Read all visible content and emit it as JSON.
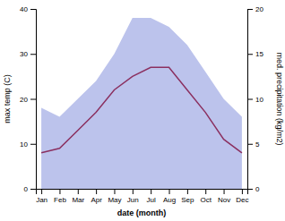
{
  "chart_data": {
    "type": "line",
    "xlabel": "date (month)",
    "ylabel": "max temp (C)",
    "y2label": "med. precipitation (kg/m2)",
    "categories": [
      "Jan",
      "Feb",
      "Mar",
      "Apr",
      "May",
      "Jun",
      "Jul",
      "Aug",
      "Sep",
      "Oct",
      "Nov",
      "Dec"
    ],
    "series": [
      {
        "type": "area",
        "axis": "y2",
        "color": "#bcc3ec",
        "values": [
          9,
          8,
          10,
          12,
          15,
          19,
          19,
          18,
          16,
          13,
          10,
          8
        ]
      },
      {
        "type": "line",
        "color": "#8b3060",
        "values": [
          8,
          9,
          13,
          17,
          22,
          25,
          27,
          27,
          22,
          17,
          11,
          8
        ]
      }
    ],
    "ylim": [
      0,
      40
    ],
    "yticks": [
      0,
      10,
      20,
      30,
      40
    ],
    "y2lim": [
      0,
      20
    ],
    "y2ticks": [
      0,
      5,
      10,
      15,
      20
    ]
  }
}
